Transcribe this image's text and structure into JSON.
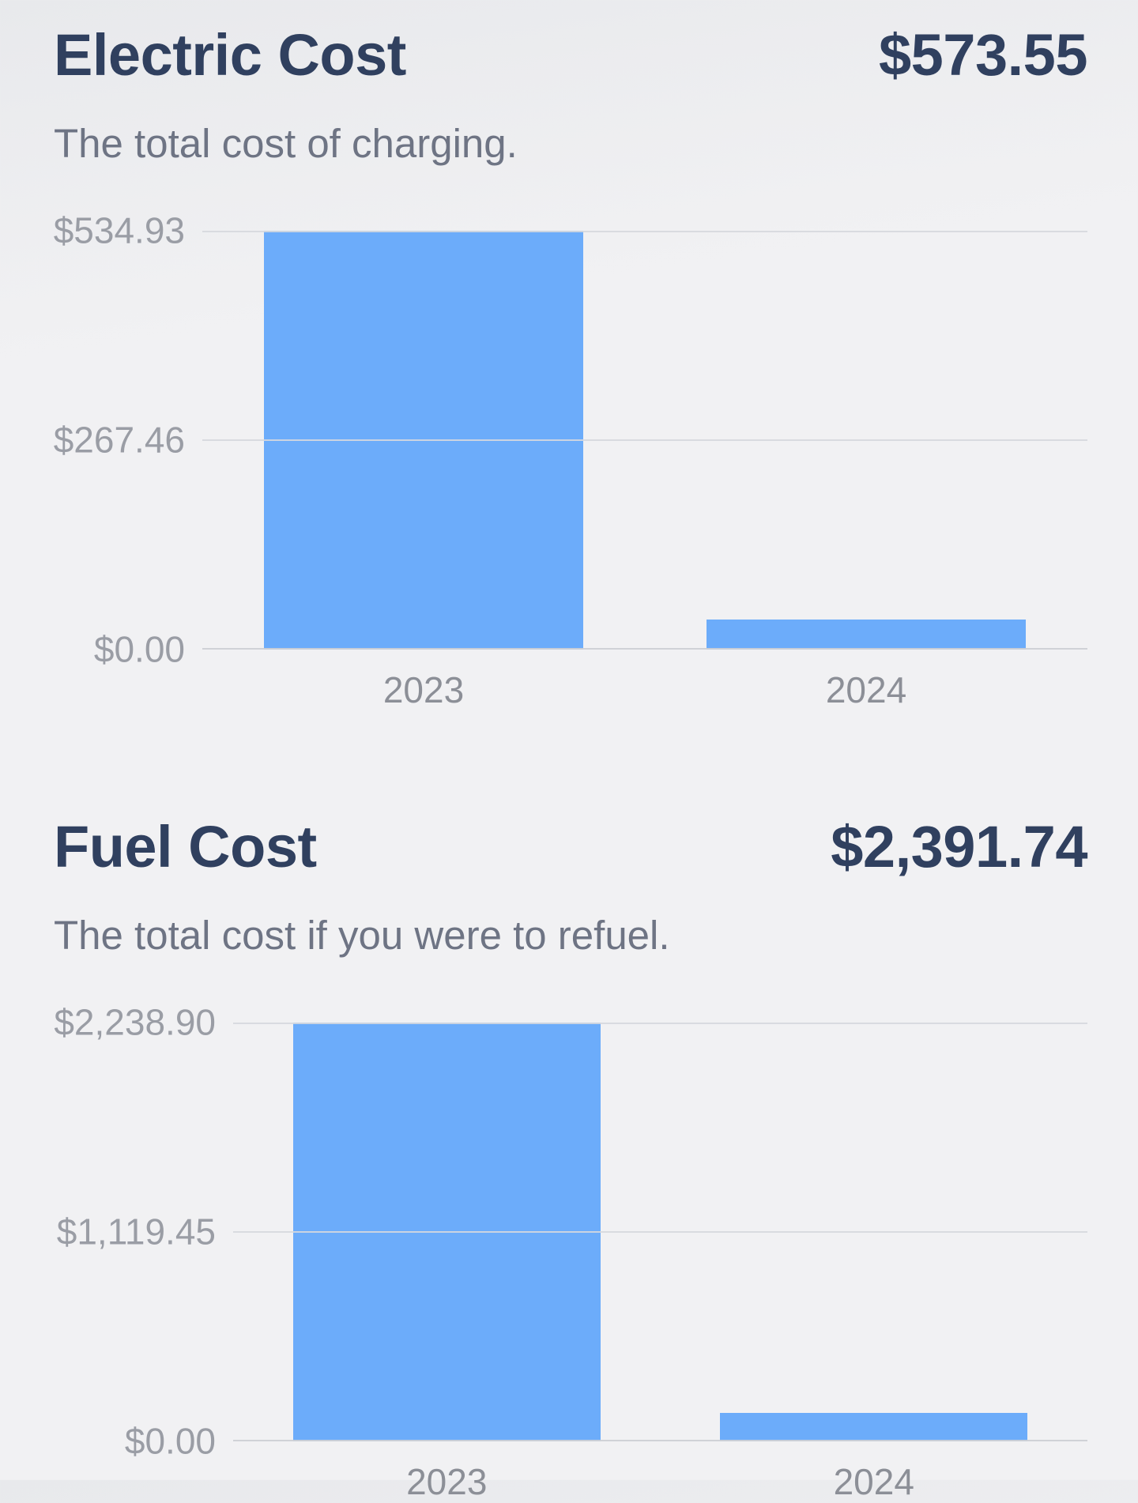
{
  "theme": {
    "background_top": "#e8e9ec",
    "background": "#f1f1f3",
    "title_color": "#30405f",
    "subtitle_color": "#6e7484",
    "tick_color": "#9a9da5",
    "xlabel_color": "#8c8f97",
    "bar_color": "#6cacfa"
  },
  "sections": [
    {
      "title": "Electric Cost",
      "total": "$573.55",
      "subtitle": "The total cost of charging."
    },
    {
      "title": "Fuel Cost",
      "total": "$2,391.74",
      "subtitle": "The total cost if you were to refuel."
    }
  ],
  "chart_data": [
    {
      "type": "bar",
      "title": "Electric Cost",
      "subtitle": "The total cost of charging.",
      "total_label": "$573.55",
      "categories": [
        "2023",
        "2024"
      ],
      "values": [
        534.93,
        38.62
      ],
      "yticks": [
        {
          "label": "$534.93",
          "value": 534.93
        },
        {
          "label": "$267.46",
          "value": 267.46
        },
        {
          "label": "$0.00",
          "value": 0
        }
      ],
      "xlabel": "",
      "ylabel": "",
      "ylim": [
        0,
        534.93
      ],
      "grid": true,
      "legend": false,
      "bar_color": "#6cacfa"
    },
    {
      "type": "bar",
      "title": "Fuel Cost",
      "subtitle": "The total cost if you were to refuel.",
      "total_label": "$2,391.74",
      "categories": [
        "2023",
        "2024"
      ],
      "values": [
        2238.9,
        152.84
      ],
      "yticks": [
        {
          "label": "$2,238.90",
          "value": 2238.9
        },
        {
          "label": "$1,119.45",
          "value": 1119.45
        },
        {
          "label": "$0.00",
          "value": 0
        }
      ],
      "xlabel": "",
      "ylabel": "",
      "ylim": [
        0,
        2238.9
      ],
      "grid": true,
      "legend": false,
      "bar_color": "#6cacfa"
    }
  ]
}
